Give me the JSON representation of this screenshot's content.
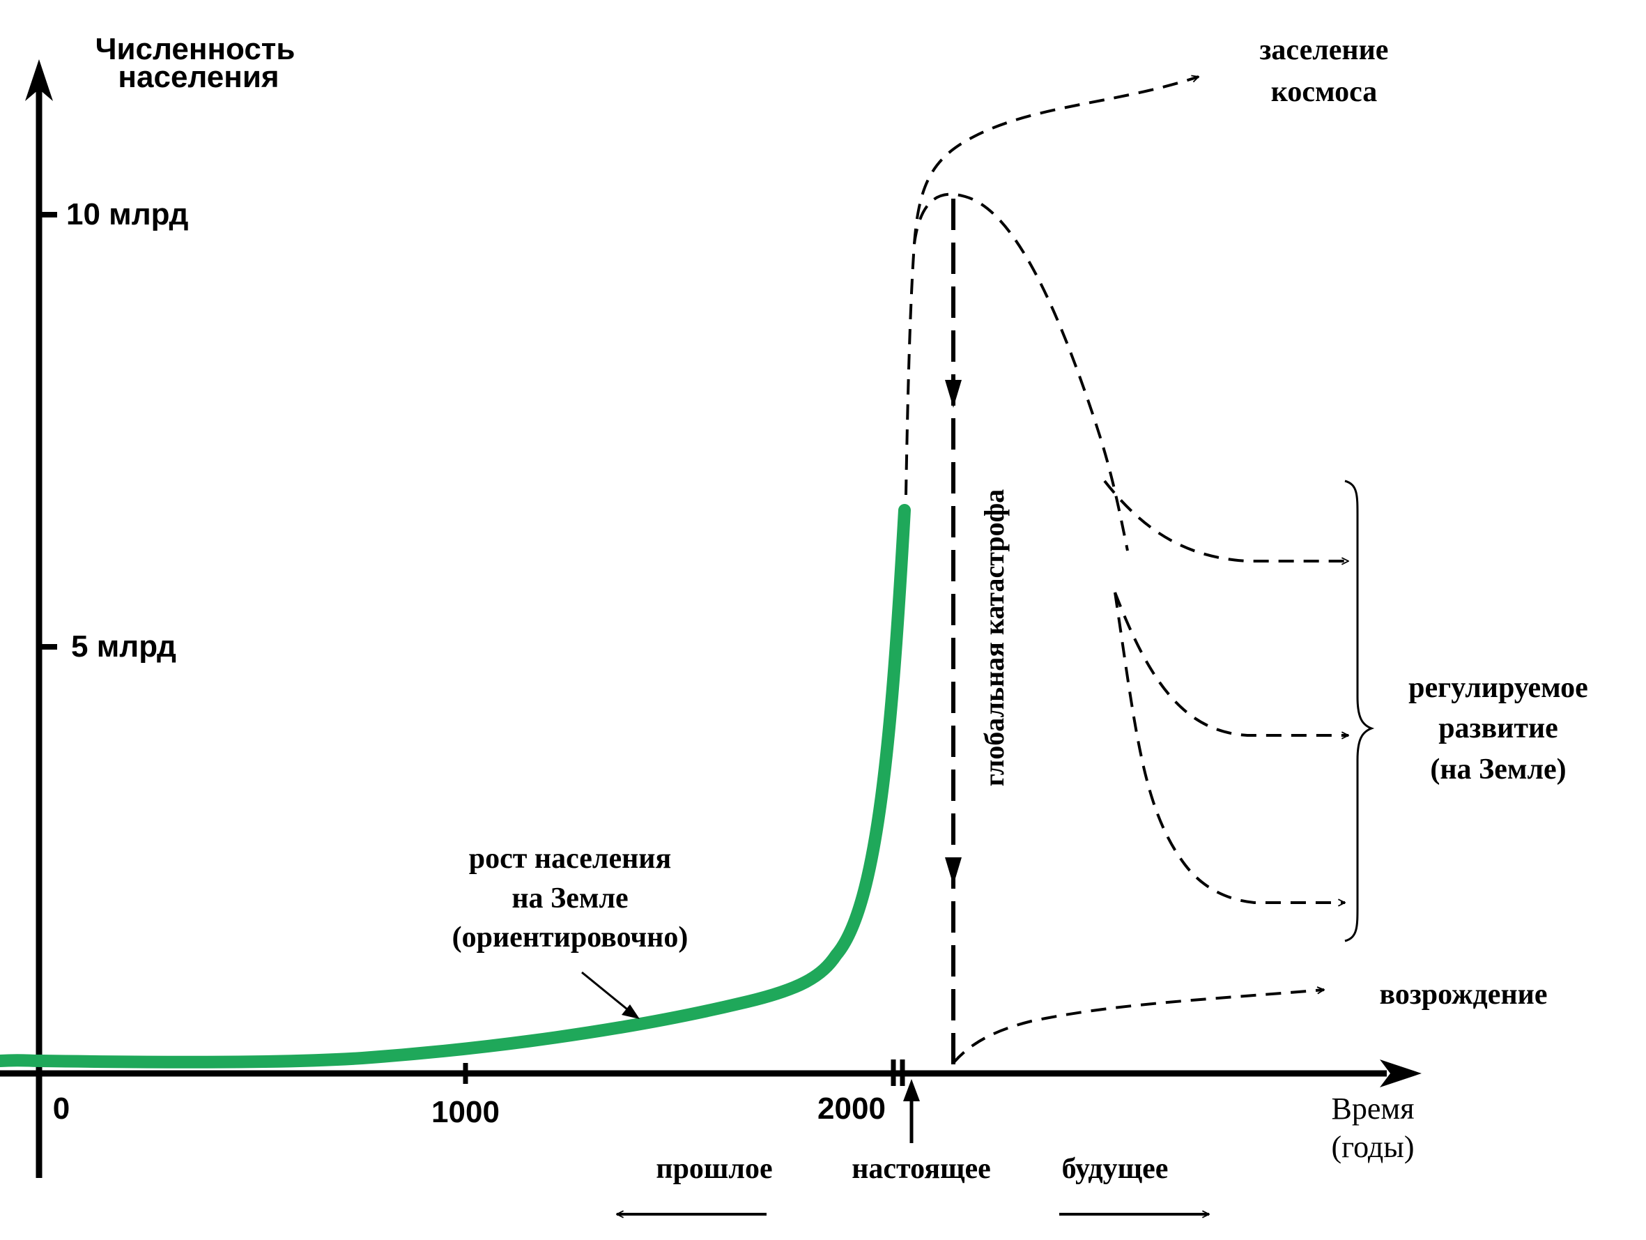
{
  "y_axis": {
    "title_line1": "Численность",
    "title_line2": "населения",
    "ticks": [
      {
        "label": "10 млрд",
        "value": 10
      },
      {
        "label": "5 млрд",
        "value": 5
      }
    ]
  },
  "x_axis": {
    "ticks": [
      {
        "label": "0",
        "value": 0
      },
      {
        "label": "1000",
        "value": 1000
      },
      {
        "label": "2000",
        "value": 2000
      }
    ],
    "title_line1": "Время",
    "title_line2": "(годы)"
  },
  "time_labels": {
    "past": "прошлое",
    "present": "настоящее",
    "future": "будущее"
  },
  "annotations": {
    "growth_line1": "рост населения",
    "growth_line2": "на Земле",
    "growth_line3": "(ориентировочно)",
    "catastrophe": "глобальная катастрофа",
    "space_line1": "заселение",
    "space_line2": "космоса",
    "regulated_line1": "регулируемое",
    "regulated_line2": "развитие",
    "regulated_line3": "(на Земле)",
    "revival": "возрождение"
  },
  "colors": {
    "growth_curve": "#1fa85a",
    "axis": "#000000"
  }
}
